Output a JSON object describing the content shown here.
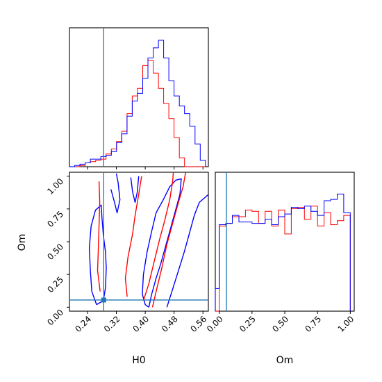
{
  "chart_data": {
    "type": "corner",
    "colors": {
      "red": "#ff0000",
      "blue": "#0000ff",
      "truth": "#1f77b4"
    },
    "truth": {
      "H0": 0.285,
      "Om": 0.055
    },
    "panels": {
      "h0_hist": {
        "type": "histogram",
        "xlim": [
          0.19,
          0.575
        ],
        "ymax": 1.0,
        "edges": [
          0.19,
          0.2045,
          0.219,
          0.2335,
          0.248,
          0.2625,
          0.277,
          0.2915,
          0.306,
          0.3205,
          0.335,
          0.3495,
          0.364,
          0.3785,
          0.393,
          0.4075,
          0.422,
          0.4365,
          0.451,
          0.4655,
          0.48,
          0.4945,
          0.509,
          0.5235,
          0.538,
          0.5525,
          0.567
        ],
        "series": [
          {
            "color": "red",
            "values": [
              0.0,
              0.0,
              0.01,
              0.03,
              0.04,
              0.05,
              0.06,
              0.1,
              0.14,
              0.2,
              0.28,
              0.42,
              0.56,
              0.62,
              0.8,
              0.84,
              0.74,
              0.62,
              0.5,
              0.38,
              0.23,
              0.07,
              0.0,
              0.0,
              0.0,
              0.0
            ]
          },
          {
            "color": "blue",
            "values": [
              0.0,
              0.01,
              0.02,
              0.03,
              0.06,
              0.06,
              0.08,
              0.09,
              0.12,
              0.19,
              0.26,
              0.4,
              0.52,
              0.58,
              0.7,
              0.86,
              0.94,
              1.0,
              0.86,
              0.68,
              0.56,
              0.48,
              0.42,
              0.32,
              0.18,
              0.05
            ]
          }
        ]
      },
      "om_hist": {
        "type": "histogram",
        "xlim": [
          -0.03,
          1.03
        ],
        "ymax": 0.95,
        "xticks": [
          0.0,
          0.25,
          0.5,
          0.75,
          1.0
        ],
        "xtick_labels": [
          "0.00",
          "0.25",
          "0.50",
          "0.75",
          "1.00"
        ],
        "xlabel": "Om",
        "series": [
          {
            "color": "red",
            "edges": [
              -0.03,
              0.0,
              0.05,
              0.1,
              0.15,
              0.2,
              0.25,
              0.3,
              0.35,
              0.4,
              0.45,
              0.5,
              0.55,
              0.6,
              0.65,
              0.7,
              0.75,
              0.8,
              0.85,
              0.9,
              0.95,
              1.0
            ],
            "values": [
              0.0,
              0.64,
              0.66,
              0.71,
              0.71,
              0.76,
              0.75,
              0.66,
              0.75,
              0.64,
              0.76,
              0.58,
              0.77,
              0.78,
              0.69,
              0.79,
              0.64,
              0.74,
              0.65,
              0.68,
              0.72
            ]
          },
          {
            "color": "blue",
            "edges": [
              -0.03,
              0.0,
              0.05,
              0.1,
              0.15,
              0.2,
              0.25,
              0.3,
              0.35,
              0.4,
              0.45,
              0.5,
              0.55,
              0.6,
              0.65,
              0.7,
              0.75,
              0.8,
              0.85,
              0.9,
              0.95,
              1.0
            ],
            "values": [
              0.17,
              0.65,
              0.66,
              0.72,
              0.67,
              0.67,
              0.66,
              0.66,
              0.69,
              0.65,
              0.71,
              0.73,
              0.78,
              0.77,
              0.79,
              0.75,
              0.72,
              0.83,
              0.84,
              0.88,
              0.74
            ]
          }
        ]
      },
      "joint": {
        "type": "contour",
        "xlim": [
          0.19,
          0.575
        ],
        "ylim": [
          -0.03,
          1.03
        ],
        "xticks": [
          0.24,
          0.32,
          0.4,
          0.48,
          0.56
        ],
        "xtick_labels": [
          "0.24",
          "0.32",
          "0.40",
          "0.48",
          "0.56"
        ],
        "yticks": [
          0.0,
          0.25,
          0.5,
          0.75,
          1.0
        ],
        "ytick_labels": [
          "0.00",
          "0.25",
          "0.50",
          "0.75",
          "1.00"
        ],
        "xlabel": "H0",
        "ylabel": "Om",
        "contours": [
          {
            "color": "blue",
            "points": [
              [
                0.265,
                0.02
              ],
              [
                0.252,
                0.12
              ],
              [
                0.248,
                0.28
              ],
              [
                0.245,
                0.45
              ],
              [
                0.25,
                0.62
              ],
              [
                0.262,
                0.74
              ],
              [
                0.278,
                0.78
              ],
              [
                0.28,
                0.68
              ],
              [
                0.284,
                0.55
              ],
              [
                0.29,
                0.42
              ],
              [
                0.292,
                0.3
              ],
              [
                0.29,
                0.15
              ],
              [
                0.284,
                0.05
              ],
              [
                0.265,
                0.02
              ]
            ]
          },
          {
            "color": "blue",
            "points": [
              [
                0.305,
                0.9
              ],
              [
                0.315,
                0.8
              ],
              [
                0.322,
                0.72
              ],
              [
                0.33,
                0.82
              ],
              [
                0.325,
                0.95
              ],
              [
                0.32,
                1.02
              ]
            ]
          },
          {
            "color": "blue",
            "points": [
              [
                0.36,
                0.99
              ],
              [
                0.365,
                0.88
              ],
              [
                0.372,
                0.8
              ],
              [
                0.378,
                0.88
              ],
              [
                0.382,
                1.0
              ]
            ]
          },
          {
            "color": "blue",
            "points": [
              [
                0.41,
                0.0
              ],
              [
                0.418,
                0.1
              ],
              [
                0.43,
                0.22
              ],
              [
                0.444,
                0.34
              ],
              [
                0.458,
                0.48
              ],
              [
                0.472,
                0.62
              ],
              [
                0.486,
                0.76
              ],
              [
                0.496,
                0.86
              ],
              [
                0.5,
                0.98
              ],
              [
                0.485,
                0.97
              ],
              [
                0.468,
                0.92
              ],
              [
                0.45,
                0.82
              ],
              [
                0.43,
                0.72
              ],
              [
                0.418,
                0.58
              ],
              [
                0.405,
                0.42
              ],
              [
                0.395,
                0.25
              ],
              [
                0.392,
                0.1
              ],
              [
                0.4,
                0.02
              ],
              [
                0.41,
                0.0
              ]
            ]
          },
          {
            "color": "blue",
            "points": [
              [
                0.46,
                0.0
              ],
              [
                0.474,
                0.12
              ],
              [
                0.49,
                0.26
              ],
              [
                0.508,
                0.42
              ],
              [
                0.522,
                0.56
              ],
              [
                0.536,
                0.7
              ],
              [
                0.55,
                0.8
              ],
              [
                0.575,
                0.86
              ]
            ]
          },
          {
            "color": "red",
            "points": [
              [
                0.275,
                0.12
              ],
              [
                0.268,
                0.28
              ],
              [
                0.27,
                0.45
              ],
              [
                0.272,
                0.62
              ],
              [
                0.274,
                0.8
              ],
              [
                0.272,
                0.96
              ]
            ]
          },
          {
            "color": "red",
            "points": [
              [
                0.395,
                0.05
              ],
              [
                0.41,
                0.18
              ],
              [
                0.424,
                0.34
              ],
              [
                0.44,
                0.52
              ],
              [
                0.454,
                0.66
              ],
              [
                0.468,
                0.82
              ],
              [
                0.476,
                0.96
              ],
              [
                0.478,
                1.03
              ]
            ]
          },
          {
            "color": "red",
            "points": [
              [
                0.42,
                0.0
              ],
              [
                0.432,
                0.14
              ],
              [
                0.446,
                0.3
              ],
              [
                0.46,
                0.48
              ],
              [
                0.476,
                0.64
              ],
              [
                0.492,
                0.8
              ],
              [
                0.505,
                0.92
              ],
              [
                0.512,
                1.03
              ]
            ]
          },
          {
            "color": "red",
            "points": [
              [
                0.35,
                0.08
              ],
              [
                0.345,
                0.22
              ],
              [
                0.352,
                0.38
              ],
              [
                0.365,
                0.56
              ],
              [
                0.372,
                0.7
              ],
              [
                0.382,
                0.86
              ],
              [
                0.39,
                1.0
              ]
            ]
          }
        ]
      }
    }
  }
}
